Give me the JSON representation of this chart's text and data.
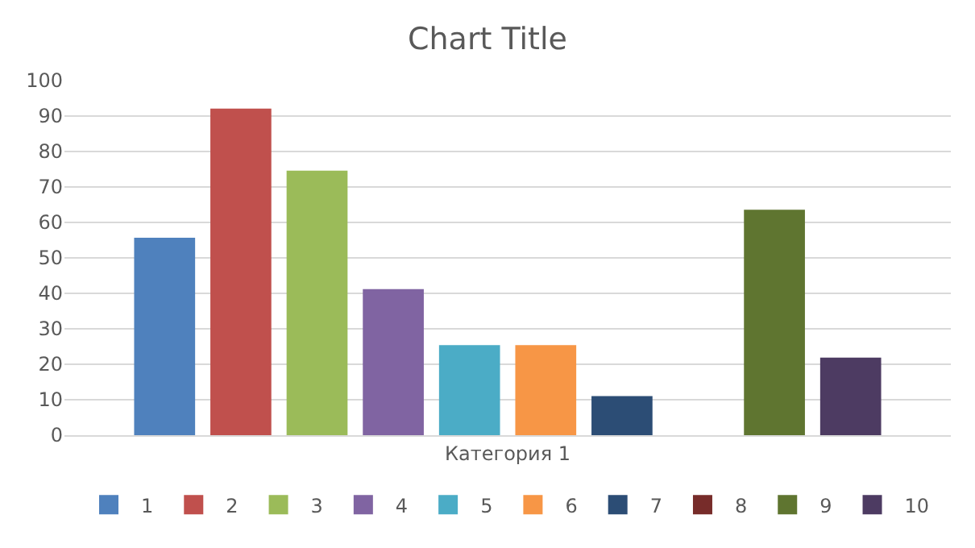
{
  "chart_data": {
    "type": "bar",
    "title": "Chart Title",
    "categories": [
      "Категория 1"
    ],
    "series": [
      {
        "name": "1",
        "color": "#4f81bd",
        "values": [
          55.7
        ]
      },
      {
        "name": "2",
        "color": "#c0504d",
        "values": [
          92.1
        ]
      },
      {
        "name": "3",
        "color": "#9bbb59",
        "values": [
          74.6
        ]
      },
      {
        "name": "4",
        "color": "#8064a2",
        "values": [
          41.2
        ]
      },
      {
        "name": "5",
        "color": "#4bacc6",
        "values": [
          25.4
        ]
      },
      {
        "name": "6",
        "color": "#f79646",
        "values": [
          25.4
        ]
      },
      {
        "name": "7",
        "color": "#2c4d75",
        "values": [
          11
        ]
      },
      {
        "name": "8",
        "color": "#772c2a",
        "values": [
          0
        ]
      },
      {
        "name": "9",
        "color": "#5f7530",
        "values": [
          63.6
        ]
      },
      {
        "name": "10",
        "color": "#4d3b62",
        "values": [
          21.9
        ]
      }
    ],
    "ylim": [
      0,
      100
    ],
    "yticks": [
      0,
      10,
      20,
      30,
      40,
      50,
      60,
      70,
      80,
      90,
      100
    ],
    "grid": "y",
    "legend": "bottom"
  }
}
